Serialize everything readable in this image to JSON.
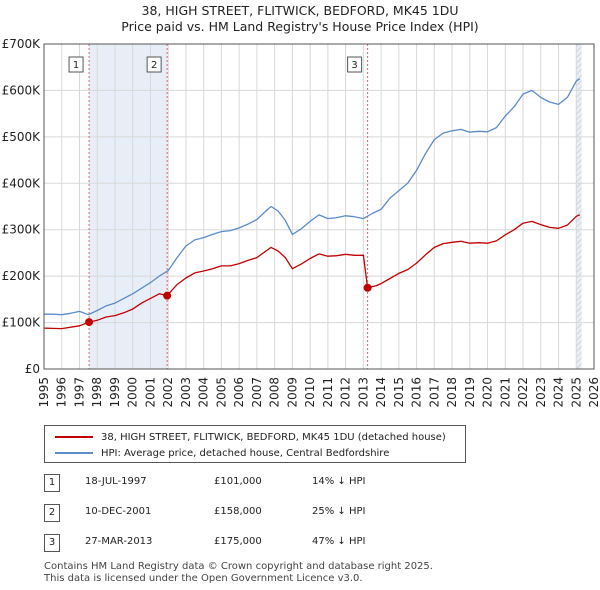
{
  "chart_data": {
    "type": "line",
    "title": "38, HIGH STREET, FLITWICK, BEDFORD, MK45 1DU",
    "subtitle": "Price paid vs. HM Land Registry's House Price Index (HPI)",
    "xlabel": "",
    "ylabel": "",
    "xlim": [
      1995,
      2026
    ],
    "ylim": [
      0,
      700000
    ],
    "x_ticks": [
      1995,
      1996,
      1997,
      1998,
      1999,
      2000,
      2001,
      2002,
      2003,
      2004,
      2005,
      2006,
      2007,
      2008,
      2009,
      2010,
      2011,
      2012,
      2013,
      2014,
      2015,
      2016,
      2017,
      2018,
      2019,
      2020,
      2021,
      2022,
      2023,
      2024,
      2025,
      2026
    ],
    "y_ticks": [
      0,
      100000,
      200000,
      300000,
      400000,
      500000,
      600000,
      700000
    ],
    "y_tick_labels": [
      "£0",
      "£100K",
      "£200K",
      "£300K",
      "£400K",
      "£500K",
      "£600K",
      "£700K"
    ],
    "grid": true,
    "shaded_periods": [
      [
        1997.54,
        2001.94
      ],
      [
        2013.24,
        2013.24
      ],
      [
        2025.0,
        2025.3
      ]
    ],
    "series": [
      {
        "name": "HPI: Average price, detached house, Central Bedfordshire",
        "color": "#5b8cc8",
        "points": [
          [
            1995.0,
            118000
          ],
          [
            1995.5,
            118000
          ],
          [
            1996.0,
            117000
          ],
          [
            1996.5,
            120000
          ],
          [
            1997.0,
            124000
          ],
          [
            1997.5,
            117000
          ],
          [
            1998.0,
            126000
          ],
          [
            1998.5,
            136000
          ],
          [
            1999.0,
            142000
          ],
          [
            1999.5,
            152000
          ],
          [
            2000.0,
            162000
          ],
          [
            2000.5,
            174000
          ],
          [
            2001.0,
            186000
          ],
          [
            2001.5,
            200000
          ],
          [
            2002.0,
            212000
          ],
          [
            2002.5,
            240000
          ],
          [
            2003.0,
            265000
          ],
          [
            2003.5,
            278000
          ],
          [
            2004.0,
            283000
          ],
          [
            2004.5,
            290000
          ],
          [
            2005.0,
            296000
          ],
          [
            2005.5,
            298000
          ],
          [
            2006.0,
            304000
          ],
          [
            2006.5,
            312000
          ],
          [
            2007.0,
            322000
          ],
          [
            2007.5,
            340000
          ],
          [
            2007.8,
            350000
          ],
          [
            2008.2,
            340000
          ],
          [
            2008.6,
            320000
          ],
          [
            2009.0,
            290000
          ],
          [
            2009.5,
            302000
          ],
          [
            2010.0,
            318000
          ],
          [
            2010.5,
            332000
          ],
          [
            2011.0,
            324000
          ],
          [
            2011.5,
            326000
          ],
          [
            2012.0,
            330000
          ],
          [
            2012.5,
            328000
          ],
          [
            2013.0,
            324000
          ],
          [
            2013.5,
            335000
          ],
          [
            2014.0,
            344000
          ],
          [
            2014.5,
            368000
          ],
          [
            2015.0,
            384000
          ],
          [
            2015.5,
            400000
          ],
          [
            2016.0,
            428000
          ],
          [
            2016.5,
            464000
          ],
          [
            2017.0,
            494000
          ],
          [
            2017.5,
            508000
          ],
          [
            2018.0,
            513000
          ],
          [
            2018.5,
            516000
          ],
          [
            2019.0,
            510000
          ],
          [
            2019.5,
            512000
          ],
          [
            2020.0,
            511000
          ],
          [
            2020.5,
            520000
          ],
          [
            2021.0,
            545000
          ],
          [
            2021.5,
            565000
          ],
          [
            2022.0,
            592000
          ],
          [
            2022.5,
            600000
          ],
          [
            2023.0,
            585000
          ],
          [
            2023.5,
            575000
          ],
          [
            2024.0,
            570000
          ],
          [
            2024.5,
            585000
          ],
          [
            2025.0,
            620000
          ],
          [
            2025.2,
            625000
          ]
        ]
      },
      {
        "name": "38, HIGH STREET, FLITWICK, BEDFORD, MK45 1DU (detached house)",
        "color": "#c00000",
        "points": [
          [
            1995.0,
            88000
          ],
          [
            1996.0,
            87000
          ],
          [
            1997.0,
            93000
          ],
          [
            1997.54,
            101000
          ],
          [
            1998.0,
            105000
          ],
          [
            1998.5,
            112000
          ],
          [
            1999.0,
            115000
          ],
          [
            1999.5,
            121000
          ],
          [
            2000.0,
            129000
          ],
          [
            2000.5,
            142000
          ],
          [
            2001.0,
            152000
          ],
          [
            2001.5,
            162000
          ],
          [
            2001.94,
            158000
          ],
          [
            2002.5,
            182000
          ],
          [
            2003.0,
            196000
          ],
          [
            2003.5,
            207000
          ],
          [
            2004.0,
            211000
          ],
          [
            2004.5,
            216000
          ],
          [
            2005.0,
            222000
          ],
          [
            2005.5,
            222000
          ],
          [
            2006.0,
            227000
          ],
          [
            2006.5,
            234000
          ],
          [
            2007.0,
            240000
          ],
          [
            2007.5,
            254000
          ],
          [
            2007.8,
            262000
          ],
          [
            2008.2,
            254000
          ],
          [
            2008.6,
            240000
          ],
          [
            2009.0,
            216000
          ],
          [
            2009.5,
            226000
          ],
          [
            2010.0,
            238000
          ],
          [
            2010.5,
            248000
          ],
          [
            2011.0,
            243000
          ],
          [
            2011.5,
            244000
          ],
          [
            2012.0,
            247000
          ],
          [
            2012.5,
            245000
          ],
          [
            2013.0,
            245000
          ],
          [
            2013.24,
            175000
          ],
          [
            2013.7,
            179000
          ],
          [
            2014.0,
            184000
          ],
          [
            2014.5,
            195000
          ],
          [
            2015.0,
            206000
          ],
          [
            2015.5,
            214000
          ],
          [
            2016.0,
            228000
          ],
          [
            2016.5,
            246000
          ],
          [
            2017.0,
            262000
          ],
          [
            2017.5,
            270000
          ],
          [
            2018.0,
            273000
          ],
          [
            2018.5,
            275000
          ],
          [
            2019.0,
            271000
          ],
          [
            2019.5,
            272000
          ],
          [
            2020.0,
            271000
          ],
          [
            2020.5,
            276000
          ],
          [
            2021.0,
            289000
          ],
          [
            2021.5,
            300000
          ],
          [
            2022.0,
            314000
          ],
          [
            2022.5,
            318000
          ],
          [
            2023.0,
            311000
          ],
          [
            2023.5,
            305000
          ],
          [
            2024.0,
            303000
          ],
          [
            2024.5,
            310000
          ],
          [
            2025.0,
            329000
          ],
          [
            2025.2,
            332000
          ]
        ]
      }
    ],
    "sales": [
      {
        "marker": "1",
        "x": 1997.54,
        "price": 101000
      },
      {
        "marker": "2",
        "x": 2001.94,
        "price": 158000
      },
      {
        "marker": "3",
        "x": 2013.24,
        "price": 175000
      }
    ]
  },
  "legend": {
    "property_label": "38, HIGH STREET, FLITWICK, BEDFORD, MK45 1DU (detached house)",
    "hpi_label": "HPI: Average price, detached house, Central Bedfordshire",
    "property_color": "#c00000",
    "hpi_color": "#5b8cc8"
  },
  "sales_table": [
    {
      "num": "1",
      "date": "18-JUL-1997",
      "price": "£101,000",
      "hpi": "14% ↓ HPI"
    },
    {
      "num": "2",
      "date": "10-DEC-2001",
      "price": "£158,000",
      "hpi": "25% ↓ HPI"
    },
    {
      "num": "3",
      "date": "27-MAR-2013",
      "price": "£175,000",
      "hpi": "47% ↓ HPI"
    }
  ],
  "footer": {
    "line1": "Contains HM Land Registry data © Crown copyright and database right 2025.",
    "line2": "This data is licensed under the Open Government Licence v3.0."
  }
}
